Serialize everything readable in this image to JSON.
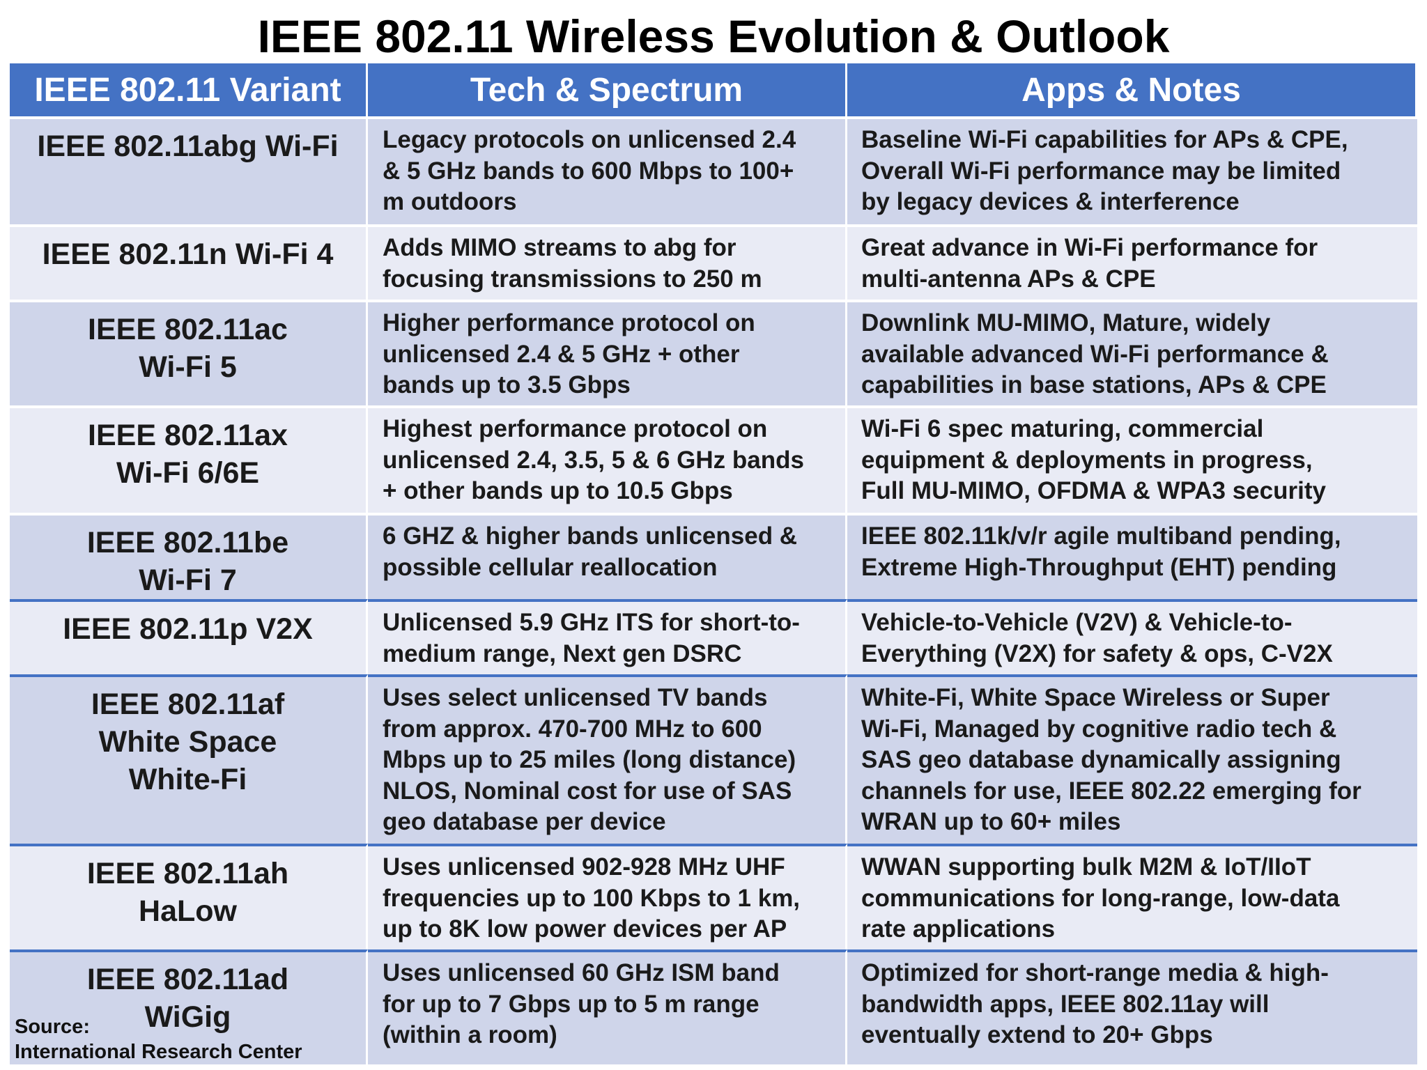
{
  "title": "IEEE 802.11 Wireless Evolution & Outlook",
  "headers": [
    "IEEE 802.11 Variant",
    "Tech & Spectrum",
    "Apps & Notes"
  ],
  "rows": [
    {
      "variant": [
        "IEEE 802.11abg Wi-Fi"
      ],
      "tech": [
        "Legacy protocols on unlicensed 2.4",
        "& 5 GHz bands to 600 Mbps to 100+",
        "m outdoors"
      ],
      "apps": [
        "Baseline Wi-Fi capabilities for APs & CPE,",
        "Overall Wi-Fi performance may be limited",
        "by legacy devices & interference"
      ]
    },
    {
      "variant": [
        "IEEE 802.11n Wi-Fi 4"
      ],
      "tech": [
        "Adds MIMO streams to abg for",
        "focusing transmissions to 250 m"
      ],
      "apps": [
        "Great advance in Wi-Fi performance for",
        "multi-antenna APs & CPE"
      ]
    },
    {
      "variant": [
        "IEEE 802.11ac",
        "Wi-Fi 5"
      ],
      "tech": [
        "Higher performance protocol on",
        "unlicensed 2.4 & 5 GHz + other",
        "bands up to 3.5 Gbps"
      ],
      "apps": [
        "Downlink MU-MIMO, Mature, widely",
        "available advanced Wi-Fi performance &",
        "capabilities in base stations, APs & CPE"
      ]
    },
    {
      "variant": [
        "IEEE 802.11ax",
        "Wi-Fi 6/6E"
      ],
      "tech": [
        "Highest performance protocol on",
        "unlicensed 2.4, 3.5, 5 & 6 GHz bands",
        "+ other bands up to 10.5 Gbps"
      ],
      "apps": [
        "Wi-Fi 6 spec maturing, commercial",
        "equipment & deployments in progress,",
        "Full MU-MIMO, OFDMA & WPA3 security"
      ]
    },
    {
      "variant": [
        "IEEE 802.11be",
        "Wi-Fi 7"
      ],
      "tech": [
        "6 GHZ & higher bands unlicensed &",
        "possible cellular reallocation"
      ],
      "apps": [
        "IEEE 802.11k/v/r agile multiband pending,",
        "Extreme High-Throughput (EHT) pending"
      ]
    },
    {
      "variant": [
        "IEEE 802.11p V2X"
      ],
      "tech": [
        "Unlicensed 5.9 GHz ITS for short-to-",
        "medium range, Next gen DSRC"
      ],
      "apps": [
        "Vehicle-to-Vehicle (V2V) & Vehicle-to-",
        "Everything (V2X) for safety & ops, C-V2X"
      ]
    },
    {
      "variant": [
        "IEEE 802.11af",
        "White Space",
        "White-Fi"
      ],
      "tech": [
        "Uses select unlicensed TV bands",
        "from approx. 470-700 MHz to 600",
        "Mbps up to 25 miles (long distance)",
        "NLOS, Nominal cost for use of SAS",
        "geo database per device"
      ],
      "apps": [
        "White-Fi, White Space Wireless or Super",
        "Wi-Fi, Managed by cognitive radio tech &",
        "SAS geo database dynamically assigning",
        "channels for use, IEEE 802.22 emerging for",
        "WRAN up to 60+ miles"
      ]
    },
    {
      "variant": [
        "IEEE 802.11ah",
        "HaLow"
      ],
      "tech": [
        "Uses unlicensed 902-928 MHz UHF",
        "frequencies up to 100 Kbps to 1 km,",
        "up to 8K low power devices per AP"
      ],
      "apps": [
        "WWAN supporting bulk M2M & IoT/IIoT",
        "communications for long-range, low-data",
        "rate applications"
      ]
    },
    {
      "variant": [
        "IEEE 802.11ad",
        "WiGig"
      ],
      "tech": [
        "Uses unlicensed 60 GHz ISM band",
        "for up to 7 Gbps up to 5 m range",
        "(within a room)"
      ],
      "apps": [
        "Optimized for short-range media & high-",
        "bandwidth apps, IEEE 802.11ay will",
        "eventually extend to 20+ Gbps"
      ]
    }
  ],
  "source": {
    "label": "Source:",
    "org": "International Research Center"
  },
  "colors": {
    "header_bg": "#4472c4",
    "row_dark": "#cfd5ea",
    "row_light": "#e9ebf5",
    "separator": "#4472c4"
  }
}
